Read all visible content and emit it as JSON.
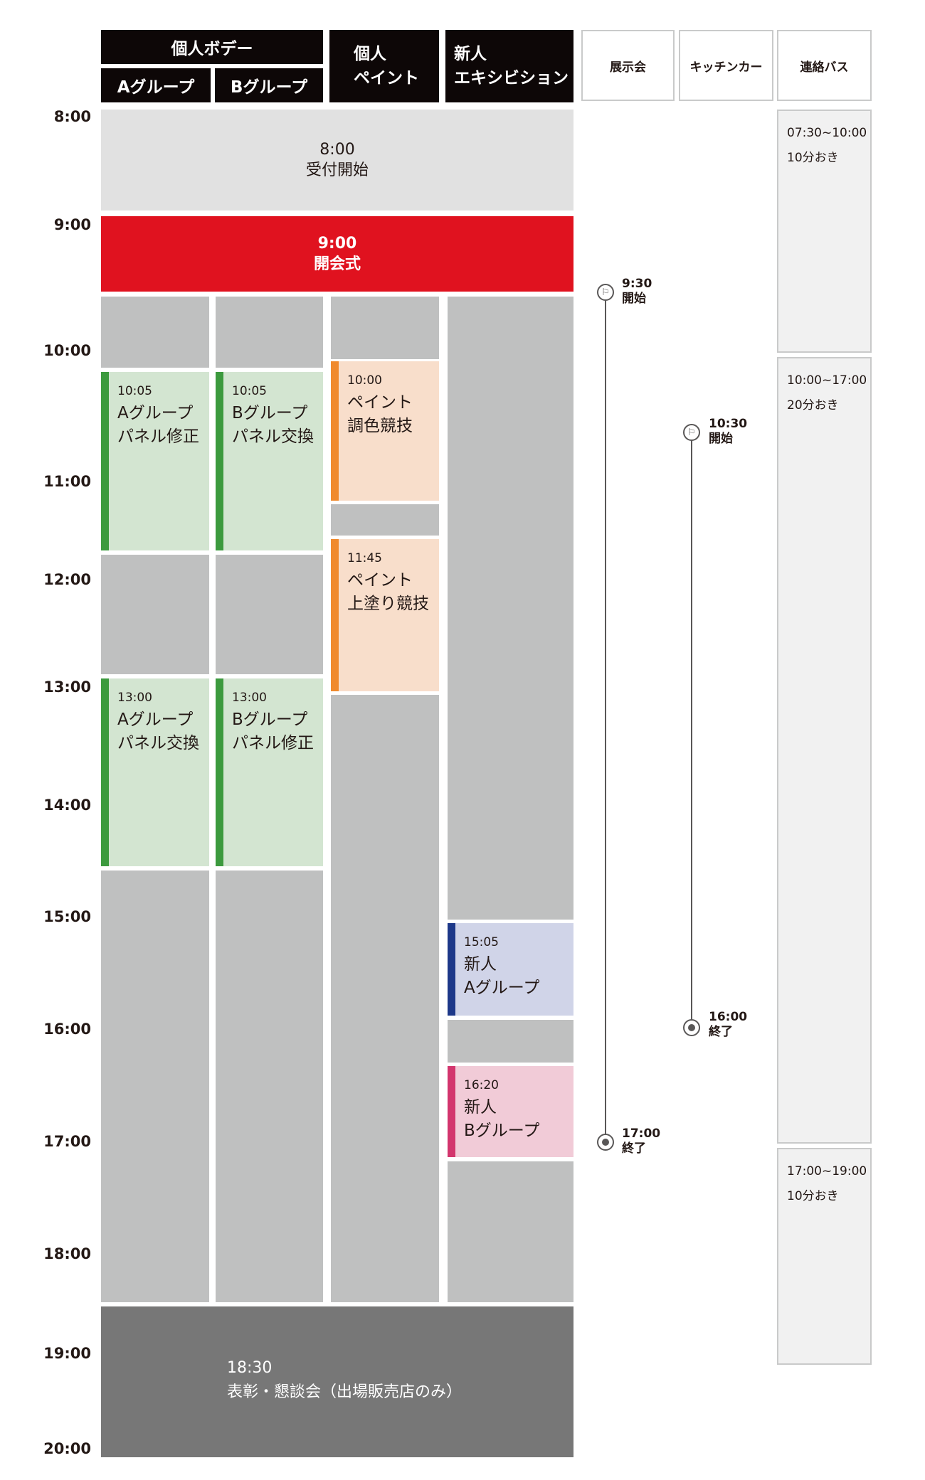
{
  "headers": {
    "individual_body": "個人ボデー",
    "a_group": "Aグループ",
    "b_group": "Bグループ",
    "individual_paint": "個人\nペイント",
    "rookie_exhibition": "新人\nエキシビション",
    "exhibition": "展示会",
    "kitchen_car": "キッチンカー",
    "shuttle_bus": "連絡バス"
  },
  "time_labels": [
    "8:00",
    "9:00",
    "10:00",
    "11:00",
    "12:00",
    "13:00",
    "14:00",
    "15:00",
    "16:00",
    "17:00",
    "18:00",
    "19:00",
    "20:00"
  ],
  "blocks": {
    "reception": {
      "time": "8:00",
      "title": "受付開始"
    },
    "opening": {
      "time": "9:00",
      "title": "開会式"
    },
    "awards": {
      "time": "18:30",
      "title": "表彰・懇談会（出場販売店のみ）"
    }
  },
  "events": {
    "a_panel_fix": {
      "time": "10:05",
      "title": "Aグループ\nパネル修正"
    },
    "b_panel_swap": {
      "time": "10:05",
      "title": "Bグループ\nパネル交換"
    },
    "paint_color": {
      "time": "10:00",
      "title": "ペイント\n調色競技"
    },
    "paint_top": {
      "time": "11:45",
      "title": "ペイント\n上塗り競技"
    },
    "a_panel_swap": {
      "time": "13:00",
      "title": "Aグループ\nパネル交換"
    },
    "b_panel_fix": {
      "time": "13:00",
      "title": "Bグループ\nパネル修正"
    },
    "rookie_a": {
      "time": "15:05",
      "title": "新人\nAグループ"
    },
    "rookie_b": {
      "time": "16:20",
      "title": "新人\nBグループ"
    }
  },
  "exhibition_timeline": {
    "start_time": "9:30",
    "start_label": "開始",
    "end_time": "17:00",
    "end_label": "終了"
  },
  "kitchen_timeline": {
    "start_time": "10:30",
    "start_label": "開始",
    "end_time": "16:00",
    "end_label": "終了"
  },
  "bus": [
    {
      "range": "07:30~10:00",
      "interval": "10分おき"
    },
    {
      "range": "10:00~17:00",
      "interval": "20分おき"
    },
    {
      "range": "17:00~19:00",
      "interval": "10分おき"
    }
  ],
  "colors": {
    "green_accent": "#3c9a3e",
    "orange_accent": "#f08a2d",
    "blue_accent": "#1d3889",
    "pink_accent": "#d3356d",
    "red_block": "#e0121f",
    "header_dark": "#0d0707"
  }
}
